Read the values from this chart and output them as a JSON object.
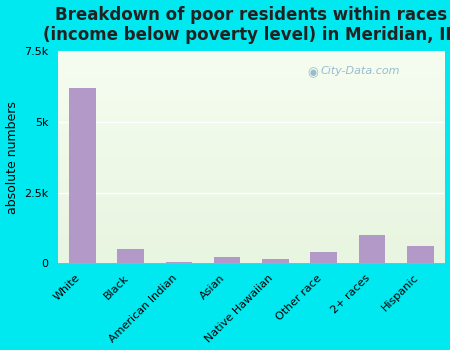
{
  "categories": [
    "White",
    "Black",
    "American Indian",
    "Asian",
    "Native Hawaiian",
    "Other race",
    "2+ races",
    "Hispanic"
  ],
  "values": [
    6200,
    500,
    30,
    200,
    150,
    400,
    1000,
    600
  ],
  "bar_color": "#b399c8",
  "title": "Breakdown of poor residents within races\n(income below poverty level) in Meridian, ID",
  "ylabel": "absolute numbers",
  "ylim": [
    0,
    7500
  ],
  "yticks": [
    0,
    2500,
    5000,
    7500
  ],
  "ytick_labels": [
    "0",
    "2.5k",
    "5k",
    "7.5k"
  ],
  "outer_bg": "#00e8f0",
  "plot_bg_top": "#e8f5e0",
  "plot_bg_bottom": "#f5fdf0",
  "title_fontsize": 12,
  "axis_label_fontsize": 9,
  "tick_fontsize": 8,
  "watermark_text": "City-Data.com"
}
